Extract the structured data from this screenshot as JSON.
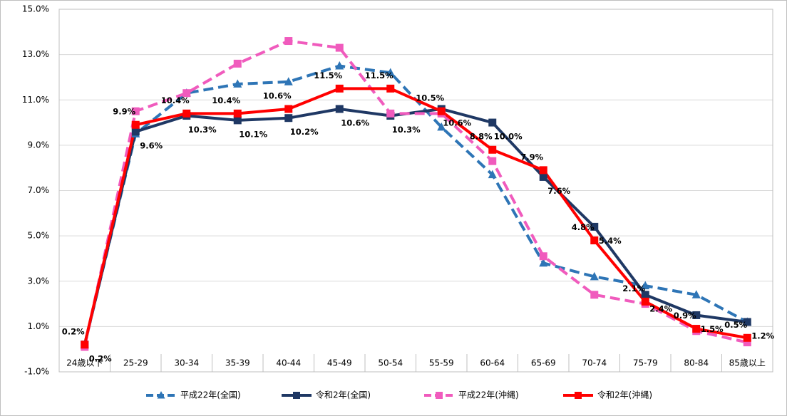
{
  "chart_data": {
    "type": "line",
    "categories": [
      "24歳以下",
      "25-29",
      "30-34",
      "35-39",
      "40-44",
      "45-49",
      "50-54",
      "55-59",
      "60-64",
      "65-69",
      "70-74",
      "75-79",
      "80-84",
      "85歳以上"
    ],
    "ylim": [
      -1,
      15
    ],
    "yticks": [
      {
        "value": -1,
        "label": "-1.0%"
      },
      {
        "value": 1,
        "label": "1.0%"
      },
      {
        "value": 3,
        "label": "3.0%"
      },
      {
        "value": 5,
        "label": "5.0%"
      },
      {
        "value": 7,
        "label": "7.0%"
      },
      {
        "value": 9,
        "label": "9.0%"
      },
      {
        "value": 11,
        "label": "11.0%"
      },
      {
        "value": 13,
        "label": "13.0%"
      },
      {
        "value": 15,
        "label": "15.0%"
      }
    ],
    "grid": true,
    "legend": "bottom",
    "series": [
      {
        "name": "平成22年(全国)",
        "color": "#2e75b6",
        "style": "dashed",
        "marker": "triangle",
        "values": [
          0.2,
          9.5,
          11.3,
          11.7,
          11.8,
          12.5,
          12.2,
          9.8,
          7.7,
          3.8,
          3.2,
          2.8,
          2.4,
          1.2
        ]
      },
      {
        "name": "令和2年(全国)",
        "color": "#1f3864",
        "style": "solid",
        "marker": "square",
        "values": [
          0.2,
          9.6,
          10.3,
          10.1,
          10.2,
          10.6,
          10.3,
          10.6,
          10.0,
          7.6,
          5.4,
          2.4,
          1.5,
          1.2
        ],
        "value_labels": [
          "0.2%",
          "9.6%",
          "10.3%",
          "10.1%",
          "10.2%",
          "10.6%",
          "10.3%",
          "10.6%",
          "10.0%",
          "7.6%",
          "5.4%",
          "2.4%",
          "1.5%",
          "1.2%"
        ]
      },
      {
        "name": "平成22年(沖縄)",
        "color": "#f05bbd",
        "style": "dashed",
        "marker": "square",
        "values": [
          0.1,
          10.5,
          11.3,
          12.6,
          13.6,
          13.3,
          10.4,
          10.4,
          8.3,
          4.1,
          2.4,
          2.0,
          0.8,
          0.3
        ]
      },
      {
        "name": "令和2年(沖縄)",
        "color": "#ff0000",
        "style": "solid",
        "marker": "square",
        "values": [
          0.2,
          9.9,
          10.4,
          10.4,
          10.6,
          11.5,
          11.5,
          10.5,
          8.8,
          7.9,
          4.8,
          2.1,
          0.9,
          0.5
        ],
        "value_labels": [
          "0.2%",
          "9.9%",
          "10.4%",
          "10.4%",
          "10.6%",
          "11.5%",
          "11.5%",
          "10.5%",
          "8.8%",
          "7.9%",
          "4.8%",
          "2.1%",
          "0.9%",
          "0.5%"
        ]
      }
    ]
  }
}
